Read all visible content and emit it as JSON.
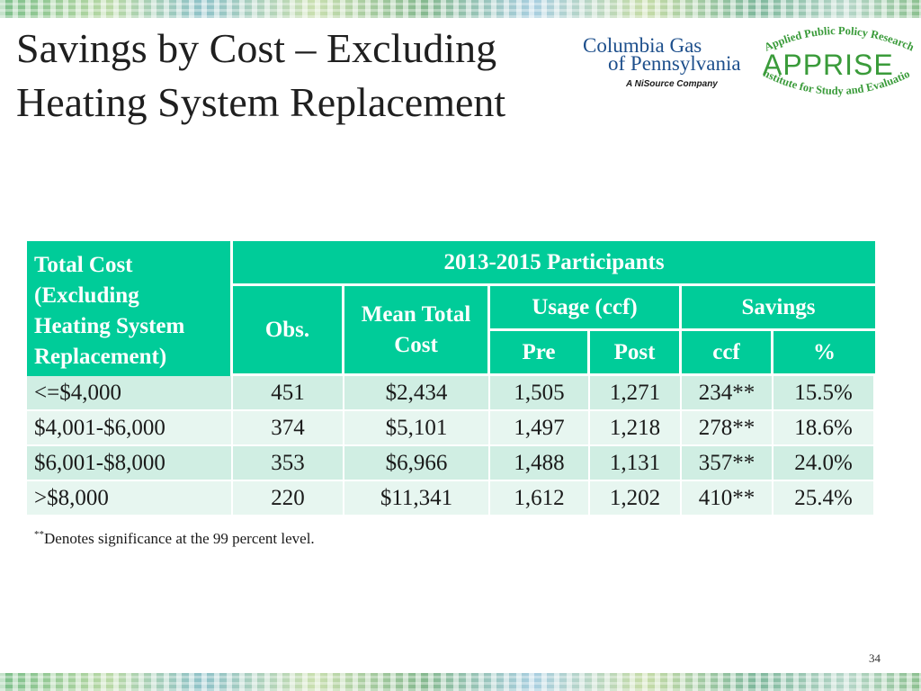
{
  "slide": {
    "title_line1": "Savings by Cost – Excluding",
    "title_line2": "Heating System Replacement",
    "page_number": "34"
  },
  "logos": {
    "columbia": {
      "line1": "Columbia Gas",
      "line2": "of Pennsylvania",
      "line3": "A NiSource Company",
      "color": "#1d4f8c"
    },
    "apprise": {
      "arc_top": "Applied Public Policy Research",
      "word": "APPRISE",
      "arc_bottom": "Institute for Study and Evaluation",
      "color": "#3a9b3a"
    }
  },
  "table": {
    "accent": "#00cc99",
    "row_header_label": "Total Cost (Excluding Heating System Replacement)",
    "row_header_lines": [
      "Total Cost",
      "(Excluding",
      "Heating System",
      "Replacement)"
    ],
    "group_header": "2013-2015 Participants",
    "obs_header": "Obs.",
    "mean_header_lines": [
      "Mean Total",
      "Cost"
    ],
    "usage_header": "Usage (ccf)",
    "savings_header": "Savings",
    "sub_headers": {
      "pre": "Pre",
      "post": "Post",
      "ccf": "ccf",
      "pct": "%"
    },
    "rows": [
      {
        "cost": "<=$4,000",
        "obs": "451",
        "mean": "$2,434",
        "pre": "1,505",
        "post": "1,271",
        "ccf": "234**",
        "pct": "15.5%"
      },
      {
        "cost": "$4,001-$6,000",
        "obs": "374",
        "mean": "$5,101",
        "pre": "1,497",
        "post": "1,218",
        "ccf": "278**",
        "pct": "18.6%"
      },
      {
        "cost": "$6,001-$8,000",
        "obs": "353",
        "mean": "$6,966",
        "pre": "1,488",
        "post": "1,131",
        "ccf": "357**",
        "pct": "24.0%"
      },
      {
        "cost": ">$8,000",
        "obs": "220",
        "mean": "$11,341",
        "pre": "1,612",
        "post": "1,202",
        "ccf": "410**",
        "pct": "25.4%"
      }
    ]
  },
  "footnote": {
    "mark": "**",
    "text": "Denotes significance at the 99 percent level."
  }
}
